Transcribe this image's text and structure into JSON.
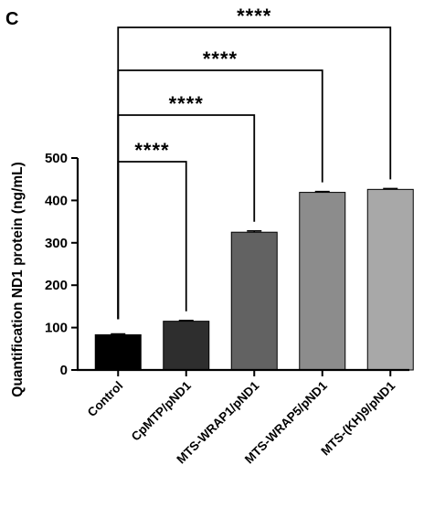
{
  "panel_label": "C",
  "chart_data": {
    "type": "bar",
    "title": "",
    "xlabel": "",
    "ylabel": "Quantification ND1 protein (ng/mL)",
    "ylim": [
      0,
      500
    ],
    "yticks": [
      0,
      100,
      200,
      300,
      400,
      500
    ],
    "categories": [
      "Control",
      "CpMTP/pND1",
      "MTS-WRAP1/pND1",
      "MTS-WRAP5/pND1",
      "MTS-(KH)9/pND1"
    ],
    "values": [
      83,
      115,
      325,
      419,
      426
    ],
    "errors": [
      2,
      2,
      3,
      2,
      2
    ],
    "bar_colors": [
      "#000000",
      "#2e2e2e",
      "#626262",
      "#8c8c8c",
      "#a8a8a8"
    ],
    "significance": [
      {
        "from": 0,
        "to": 1,
        "label": "****"
      },
      {
        "from": 0,
        "to": 2,
        "label": "****"
      },
      {
        "from": 0,
        "to": 3,
        "label": "****"
      },
      {
        "from": 0,
        "to": 4,
        "label": "****"
      }
    ],
    "grid": false,
    "legend": "none"
  }
}
